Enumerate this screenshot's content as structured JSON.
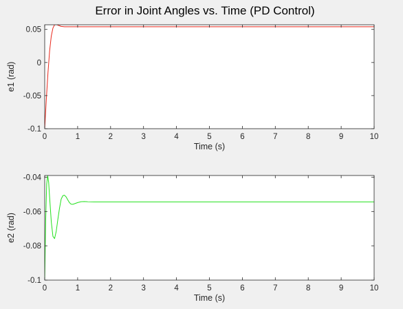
{
  "figure": {
    "title": "Error in Joint Angles vs. Time (PD Control)"
  },
  "chart_data": [
    {
      "type": "line",
      "title": "",
      "xlabel": "Time (s)",
      "ylabel": "e1 (rad)",
      "xlim": [
        0,
        10
      ],
      "ylim": [
        -0.1,
        0.057
      ],
      "xticks": [
        0,
        1,
        2,
        3,
        4,
        5,
        6,
        7,
        8,
        9,
        10
      ],
      "xtick_labels": [
        "0",
        "1",
        "2",
        "3",
        "4",
        "5",
        "6",
        "7",
        "8",
        "9",
        "10"
      ],
      "yticks": [
        -0.1,
        -0.05,
        0,
        0.05
      ],
      "ytick_labels": [
        "-0.1",
        "-0.05",
        "0",
        "0.05"
      ],
      "grid": false,
      "series": [
        {
          "color": "#e8261a",
          "x": [
            0,
            0.05,
            0.1,
            0.15,
            0.2,
            0.25,
            0.3,
            0.35,
            0.4,
            0.5,
            0.6,
            0.8,
            1.0,
            1.5,
            2,
            3,
            4,
            5,
            6,
            7,
            8,
            9,
            10
          ],
          "y": [
            -0.1,
            -0.055,
            -0.015,
            0.018,
            0.04,
            0.052,
            0.057,
            0.0575,
            0.0565,
            0.0545,
            0.054,
            0.054,
            0.054,
            0.054,
            0.054,
            0.054,
            0.054,
            0.054,
            0.054,
            0.054,
            0.054,
            0.054,
            0.054
          ]
        }
      ]
    },
    {
      "type": "line",
      "title": "",
      "xlabel": "Time (s)",
      "ylabel": "e2 (rad)",
      "xlim": [
        0,
        10
      ],
      "ylim": [
        -0.1,
        -0.039
      ],
      "xticks": [
        0,
        1,
        2,
        3,
        4,
        5,
        6,
        7,
        8,
        9,
        10
      ],
      "xtick_labels": [
        "0",
        "1",
        "2",
        "3",
        "4",
        "5",
        "6",
        "7",
        "8",
        "9",
        "10"
      ],
      "yticks": [
        -0.1,
        -0.08,
        -0.06,
        -0.04
      ],
      "ytick_labels": [
        "-0.1",
        "-0.08",
        "-0.06",
        "-0.04"
      ],
      "grid": false,
      "series": [
        {
          "color": "#22e01c",
          "x": [
            0,
            0.03,
            0.06,
            0.09,
            0.12,
            0.15,
            0.2,
            0.25,
            0.3,
            0.35,
            0.4,
            0.45,
            0.5,
            0.55,
            0.6,
            0.65,
            0.7,
            0.75,
            0.8,
            0.85,
            0.9,
            1.0,
            1.1,
            1.2,
            1.3,
            1.5,
            2,
            3,
            4,
            5,
            6,
            7,
            8,
            9,
            10
          ],
          "y": [
            -0.1,
            -0.065,
            -0.044,
            -0.039,
            -0.043,
            -0.052,
            -0.066,
            -0.0745,
            -0.0758,
            -0.0715,
            -0.0645,
            -0.058,
            -0.0528,
            -0.0508,
            -0.0505,
            -0.0515,
            -0.0532,
            -0.0548,
            -0.0557,
            -0.0558,
            -0.0555,
            -0.0548,
            -0.0543,
            -0.0542,
            -0.0543,
            -0.0544,
            -0.0544,
            -0.0544,
            -0.0544,
            -0.0544,
            -0.0544,
            -0.0544,
            -0.0544,
            -0.0544,
            -0.0544
          ]
        }
      ]
    }
  ]
}
